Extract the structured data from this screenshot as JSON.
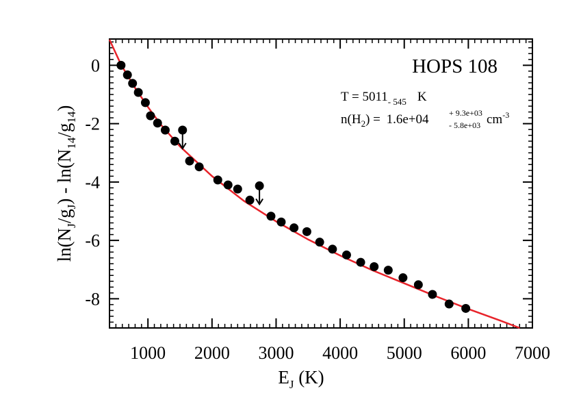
{
  "chart_data": {
    "type": "scatter",
    "title": "HOPS 108",
    "annotation_temperature": {
      "prefix": "T = 5011",
      "sub": "- 545",
      "unit": "K"
    },
    "annotation_density": {
      "label_main": "n(H",
      "label_sub": "2",
      "label_close": ") = ",
      "value": "1.6e+04",
      "sup": "+ 9.3e+03",
      "sub": "- 5.8e+03",
      "unit": "cm",
      "unit_exp": "-3"
    },
    "xlabel": {
      "main": "E",
      "sub": "J",
      "rest": " (K)"
    },
    "ylabel": {
      "p1": "ln(N",
      "s1": "J",
      "p2": "/g",
      "s2": "J",
      "p3": ") - ln(N",
      "s3": "14",
      "p4": "/g",
      "s4": "14",
      "p5": ")"
    },
    "xlim": [
      400,
      7000
    ],
    "ylim": [
      -9,
      0.9
    ],
    "xticks": [
      1000,
      2000,
      3000,
      4000,
      5000,
      6000,
      7000
    ],
    "yticks": [
      0,
      -2,
      -4,
      -6,
      -8
    ],
    "points": [
      {
        "x": 580,
        "y": 0.0
      },
      {
        "x": 680,
        "y": -0.33
      },
      {
        "x": 760,
        "y": -0.62
      },
      {
        "x": 850,
        "y": -0.93
      },
      {
        "x": 960,
        "y": -1.28
      },
      {
        "x": 1040,
        "y": -1.73
      },
      {
        "x": 1150,
        "y": -1.98
      },
      {
        "x": 1270,
        "y": -2.22
      },
      {
        "x": 1420,
        "y": -2.6
      },
      {
        "x": 1650,
        "y": -3.28
      },
      {
        "x": 1800,
        "y": -3.48
      },
      {
        "x": 2090,
        "y": -3.93
      },
      {
        "x": 2250,
        "y": -4.1
      },
      {
        "x": 2400,
        "y": -4.24
      },
      {
        "x": 2590,
        "y": -4.62
      },
      {
        "x": 2920,
        "y": -5.17
      },
      {
        "x": 3080,
        "y": -5.37
      },
      {
        "x": 3280,
        "y": -5.57
      },
      {
        "x": 3480,
        "y": -5.7
      },
      {
        "x": 3680,
        "y": -6.06
      },
      {
        "x": 3880,
        "y": -6.3
      },
      {
        "x": 4100,
        "y": -6.5
      },
      {
        "x": 4320,
        "y": -6.75
      },
      {
        "x": 4530,
        "y": -6.9
      },
      {
        "x": 4750,
        "y": -7.02
      },
      {
        "x": 4980,
        "y": -7.28
      },
      {
        "x": 5220,
        "y": -7.52
      },
      {
        "x": 5440,
        "y": -7.85
      },
      {
        "x": 5700,
        "y": -8.18
      },
      {
        "x": 5960,
        "y": -8.33
      }
    ],
    "upper_limits": [
      {
        "x": 1540,
        "y": -2.22
      },
      {
        "x": 2740,
        "y": -4.13
      }
    ],
    "fit_curve": [
      {
        "x": 400,
        "y": 0.88
      },
      {
        "x": 580,
        "y": 0.02
      },
      {
        "x": 800,
        "y": -0.78
      },
      {
        "x": 1000,
        "y": -1.43
      },
      {
        "x": 1200,
        "y": -2.03
      },
      {
        "x": 1500,
        "y": -2.78
      },
      {
        "x": 2000,
        "y": -3.8
      },
      {
        "x": 2500,
        "y": -4.65
      },
      {
        "x": 3000,
        "y": -5.35
      },
      {
        "x": 3500,
        "y": -5.97
      },
      {
        "x": 4000,
        "y": -6.52
      },
      {
        "x": 4500,
        "y": -7.02
      },
      {
        "x": 5000,
        "y": -7.47
      },
      {
        "x": 5500,
        "y": -7.92
      },
      {
        "x": 6000,
        "y": -8.35
      },
      {
        "x": 6500,
        "y": -8.75
      },
      {
        "x": 6800,
        "y": -9.0
      }
    ],
    "colors": {
      "points": "#000000",
      "fit": "#e8232a",
      "axes": "#000000"
    },
    "grid": false
  }
}
